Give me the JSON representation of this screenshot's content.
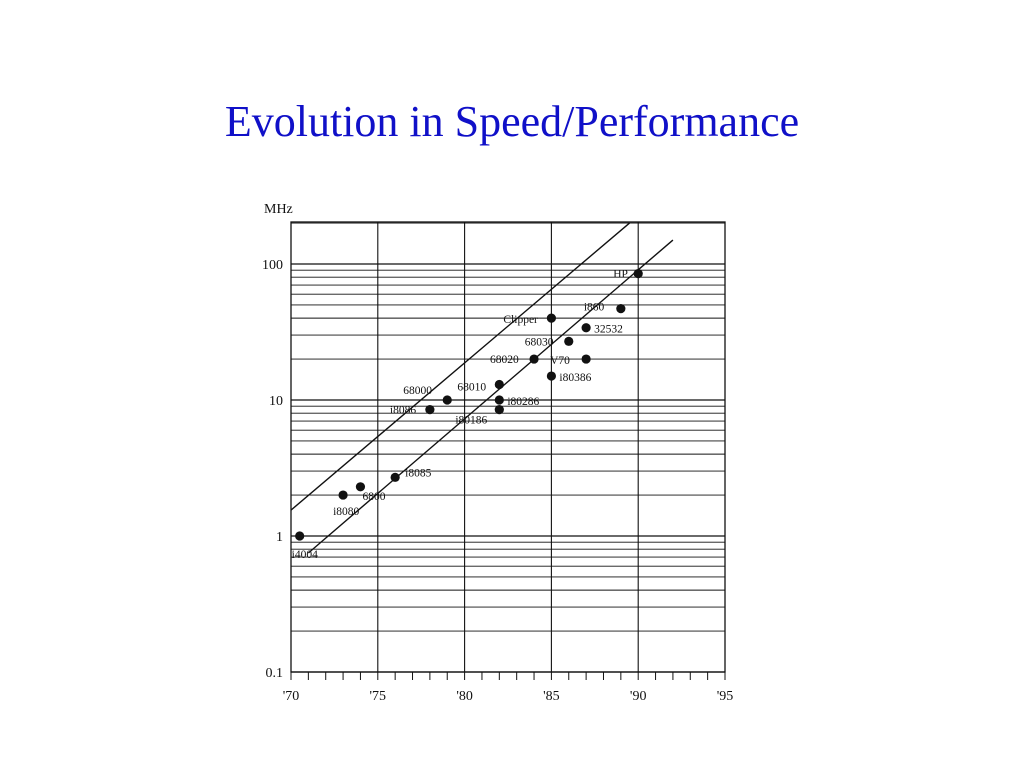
{
  "slide": {
    "title": "Evolution in Speed/Performance"
  },
  "colors": {
    "title": "#1010c8",
    "ink": "#111111"
  },
  "chart_data": {
    "type": "scatter",
    "title": "",
    "xlabel": "",
    "ylabel": "MHz",
    "y_scale": "log",
    "xlim": [
      1970,
      1995
    ],
    "ylim": [
      0.1,
      200
    ],
    "grid": true,
    "legend": "none",
    "x_ticks": [
      {
        "value": 1970,
        "label": "'70"
      },
      {
        "value": 1975,
        "label": "'75"
      },
      {
        "value": 1980,
        "label": "'80"
      },
      {
        "value": 1985,
        "label": "'85"
      },
      {
        "value": 1990,
        "label": "'90"
      },
      {
        "value": 1995,
        "label": "'95"
      }
    ],
    "y_ticks": [
      {
        "value": 0.1,
        "label": "0.1"
      },
      {
        "value": 1,
        "label": "1"
      },
      {
        "value": 10,
        "label": "10"
      },
      {
        "value": 100,
        "label": "100"
      }
    ],
    "points": [
      {
        "label": "i4004",
        "x": 1970.5,
        "y": 1
      },
      {
        "label": "i8080",
        "x": 1973,
        "y": 2
      },
      {
        "label": "6800",
        "x": 1974,
        "y": 2.3
      },
      {
        "label": "i8085",
        "x": 1976,
        "y": 2.7
      },
      {
        "label": "i8086",
        "x": 1978,
        "y": 8.5
      },
      {
        "label": "68000",
        "x": 1979,
        "y": 10
      },
      {
        "label": "68010",
        "x": 1982,
        "y": 13
      },
      {
        "label": "i80286",
        "x": 1982,
        "y": 10
      },
      {
        "label": "i80186",
        "x": 1982,
        "y": 8.5
      },
      {
        "label": "68020",
        "x": 1984,
        "y": 20
      },
      {
        "label": "i80386",
        "x": 1985,
        "y": 15
      },
      {
        "label": "Clipper",
        "x": 1985,
        "y": 40
      },
      {
        "label": "68030",
        "x": 1986,
        "y": 27
      },
      {
        "label": "V70",
        "x": 1987,
        "y": 20
      },
      {
        "label": "32532",
        "x": 1987,
        "y": 34
      },
      {
        "label": "i860",
        "x": 1989,
        "y": 47
      },
      {
        "label": "HP",
        "x": 1990,
        "y": 85
      }
    ],
    "trend_lines": [
      {
        "x1": 1970,
        "y1": 1.55,
        "x2": 1989.5,
        "y2": 200
      },
      {
        "x1": 1971,
        "y1": 0.75,
        "x2": 1992,
        "y2": 150
      }
    ]
  }
}
